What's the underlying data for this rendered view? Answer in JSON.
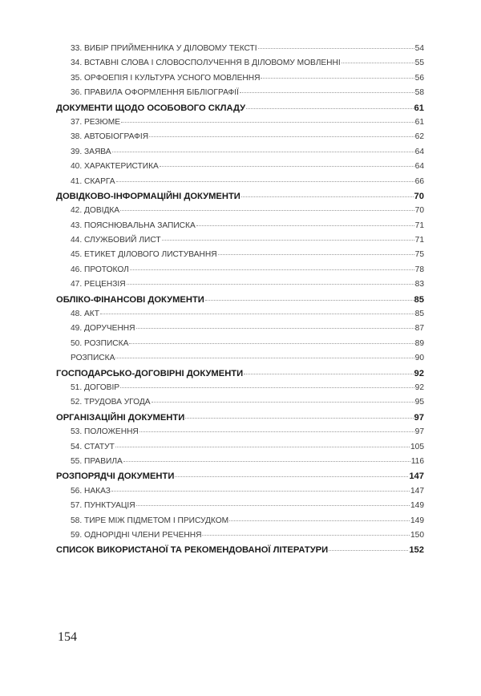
{
  "toc": [
    {
      "type": "item",
      "title": "33. ВИБІР ПРИЙМЕННИКА У ДІЛОВОМУ ТЕКСТІ",
      "page": "54"
    },
    {
      "type": "item",
      "title": "34. ВСТАВНІ СЛОВА І СЛОВОСПОЛУЧЕННЯ В ДІЛОВОМУ МОВЛЕННІ",
      "page": "55"
    },
    {
      "type": "item",
      "title": "35. ОРФОЕПІЯ І КУЛЬТУРА УСНОГО МОВЛЕННЯ",
      "page": "56"
    },
    {
      "type": "item",
      "title": "36. ПРАВИЛА ОФОРМЛЕННЯ БІБЛІОГРАФІЇ",
      "page": "58"
    },
    {
      "type": "head",
      "title": "ДОКУМЕНТИ ЩОДО ОСОБОВОГО СКЛАДУ",
      "page": "61"
    },
    {
      "type": "item",
      "title": "37. РЕЗЮМЕ",
      "page": "61"
    },
    {
      "type": "item",
      "title": "38. АВТОБІОГРАФІЯ",
      "page": "62"
    },
    {
      "type": "item",
      "title": "39. ЗАЯВА",
      "page": "64"
    },
    {
      "type": "item",
      "title": "40. ХАРАКТЕРИСТИКА",
      "page": "64"
    },
    {
      "type": "item",
      "title": "41. СКАРГА",
      "page": "66"
    },
    {
      "type": "head",
      "title": "ДОВІДКОВО-ІНФОРМАЦІЙНІ ДОКУМЕНТИ",
      "page": "70"
    },
    {
      "type": "item",
      "title": "42. ДОВІДКА",
      "page": "70"
    },
    {
      "type": "item",
      "title": "43. ПОЯСНЮВАЛЬНА ЗАПИСКА",
      "page": "71"
    },
    {
      "type": "item",
      "title": "44. СЛУЖБОВИЙ ЛИСТ",
      "page": "71"
    },
    {
      "type": "item",
      "title": "45. ЕТИКЕТ ДІЛОВОГО ЛИСТУВАННЯ",
      "page": "75"
    },
    {
      "type": "item",
      "title": "46. ПРОТОКОЛ",
      "page": "78"
    },
    {
      "type": "item",
      "title": "47. РЕЦЕНЗІЯ",
      "page": "83"
    },
    {
      "type": "head",
      "title": "ОБЛІКО-ФІНАНСОВІ ДОКУМЕНТИ",
      "page": "85"
    },
    {
      "type": "item",
      "title": "48. АКТ",
      "page": "85"
    },
    {
      "type": "item",
      "title": "49. ДОРУЧЕННЯ",
      "page": "87"
    },
    {
      "type": "item",
      "title": "50. РОЗПИСКА",
      "page": "89"
    },
    {
      "type": "item",
      "title": "РОЗПИСКА",
      "page": "90"
    },
    {
      "type": "head",
      "title": "ГОСПОДАРСЬКО-ДОГОВІРНІ ДОКУМЕНТИ",
      "page": "92"
    },
    {
      "type": "item",
      "title": "51. ДОГОВІР",
      "page": "92"
    },
    {
      "type": "item",
      "title": "52. ТРУДОВА УГОДА",
      "page": "95"
    },
    {
      "type": "head",
      "title": "ОРГАНІЗАЦІЙНІ ДОКУМЕНТИ",
      "page": "97"
    },
    {
      "type": "item",
      "title": "53. ПОЛОЖЕННЯ",
      "page": "97"
    },
    {
      "type": "item",
      "title": "54. СТАТУТ",
      "page": "105"
    },
    {
      "type": "item",
      "title": "55. ПРАВИЛА",
      "page": "116"
    },
    {
      "type": "head",
      "title": "РОЗПОРЯДЧІ ДОКУМЕНТИ",
      "page": "147"
    },
    {
      "type": "item",
      "title": "56. НАКАЗ",
      "page": "147"
    },
    {
      "type": "item",
      "title": "57. ПУНКТУАЦІЯ",
      "page": "149"
    },
    {
      "type": "item",
      "title": "58. ТИРЕ МІЖ ПІДМЕТОМ І ПРИСУДКОМ",
      "page": "149"
    },
    {
      "type": "item",
      "title": "59. ОДНОРІДНІ ЧЛЕНИ РЕЧЕННЯ",
      "page": "150"
    },
    {
      "type": "head",
      "title": "СПИСОК ВИКОРИСТАНОЇ ТА РЕКОМЕНДОВАНОЇ ЛІТЕРАТУРИ",
      "page": "152"
    }
  ],
  "page_number": "154"
}
